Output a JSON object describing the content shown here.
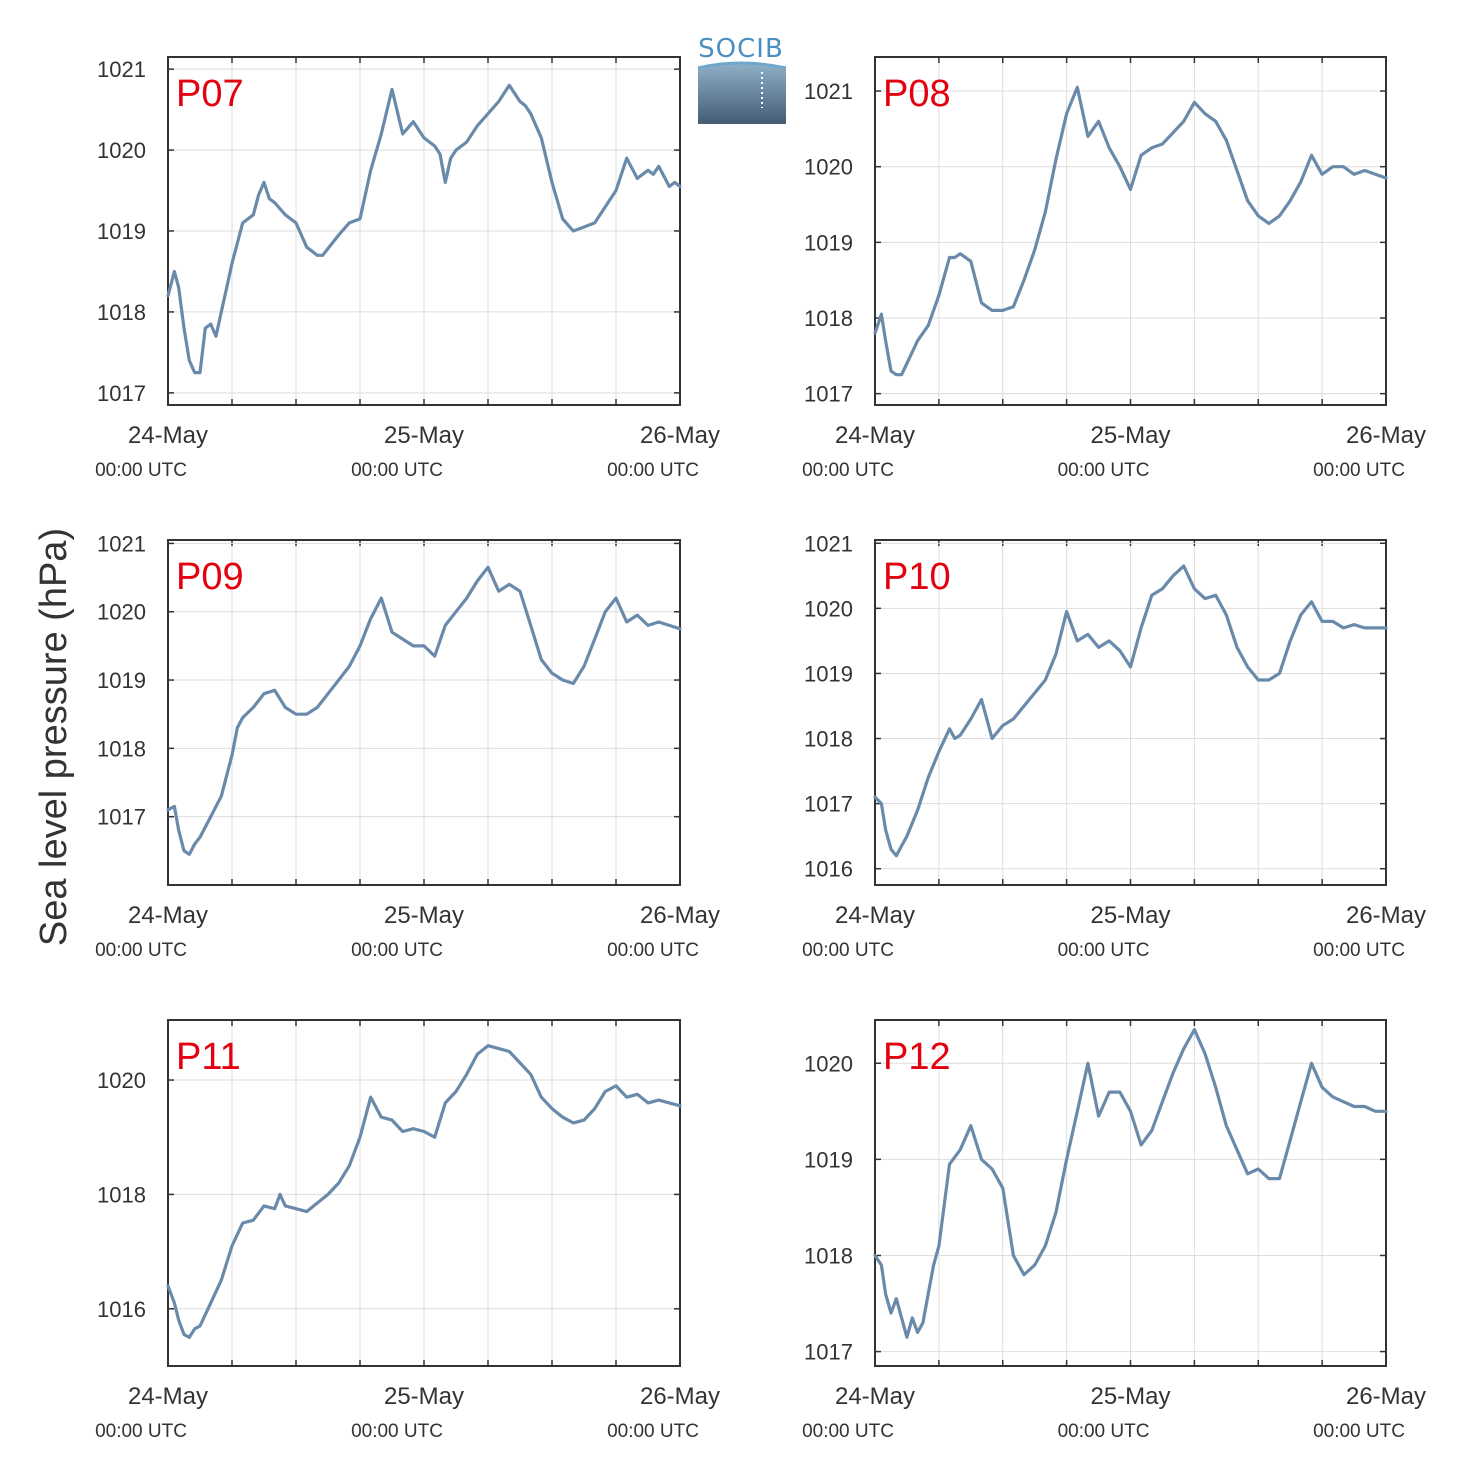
{
  "y_axis_label": "Sea level pressure (hPa)",
  "logo_text": "SOCIB",
  "colors": {
    "line": "#6a8aab",
    "panel_label": "#e3000f",
    "grid": "#dddddd",
    "axis": "#333333"
  },
  "chart_data": [
    {
      "type": "line",
      "label": "P07",
      "x_ticks": [
        "24-May",
        "25-May",
        "26-May"
      ],
      "x_tick_sublabels": [
        "00:00 UTC",
        "00:00 UTC",
        "00:00 UTC"
      ],
      "x_unit": "hours since 24-May 00:00 UTC",
      "xlim": [
        0,
        48
      ],
      "ylim": [
        1016.85,
        1021.15
      ],
      "y_ticks": [
        1017,
        1018,
        1019,
        1020,
        1021
      ],
      "grid": true,
      "series": [
        {
          "x": [
            0,
            0.6,
            1,
            1.5,
            2,
            2.5,
            3,
            3.5,
            4,
            4.5,
            5,
            5.5,
            6,
            7,
            8,
            8.5,
            9,
            9.5,
            10,
            11,
            12,
            13,
            13.5,
            14,
            14.5,
            16,
            17,
            18,
            19,
            20,
            21,
            22,
            23,
            24,
            25,
            25.5,
            26,
            26.5,
            27,
            28,
            29,
            30,
            31,
            32,
            33,
            33.5,
            34,
            35,
            36,
            37,
            38,
            39,
            40,
            41,
            42,
            43,
            44,
            45,
            45.5,
            46,
            47,
            47.5,
            48
          ],
          "y": [
            1018.2,
            1018.5,
            1018.3,
            1017.8,
            1017.4,
            1017.25,
            1017.25,
            1017.8,
            1017.85,
            1017.7,
            1018.0,
            1018.3,
            1018.6,
            1019.1,
            1019.2,
            1019.45,
            1019.6,
            1019.4,
            1019.35,
            1019.2,
            1019.1,
            1018.8,
            1018.75,
            1018.7,
            1018.7,
            1018.95,
            1019.1,
            1019.15,
            1019.75,
            1020.2,
            1020.75,
            1020.2,
            1020.35,
            1020.15,
            1020.05,
            1019.95,
            1019.6,
            1019.9,
            1020.0,
            1020.1,
            1020.3,
            1020.45,
            1020.6,
            1020.8,
            1020.6,
            1020.55,
            1020.45,
            1020.15,
            1019.6,
            1019.15,
            1019.0,
            1019.05,
            1019.1,
            1019.3,
            1019.5,
            1019.9,
            1019.65,
            1019.75,
            1019.7,
            1019.8,
            1019.55,
            1019.6,
            1019.55
          ]
        }
      ]
    },
    {
      "type": "line",
      "label": "P08",
      "x_ticks": [
        "24-May",
        "25-May",
        "26-May"
      ],
      "x_tick_sublabels": [
        "00:00 UTC",
        "00:00 UTC",
        "00:00 UTC"
      ],
      "x_unit": "hours since 24-May 00:00 UTC",
      "xlim": [
        0,
        48
      ],
      "ylim": [
        1016.85,
        1021.45
      ],
      "y_ticks": [
        1017,
        1018,
        1019,
        1020,
        1021
      ],
      "grid": true,
      "series": [
        {
          "x": [
            0,
            0.6,
            1,
            1.5,
            2,
            2.5,
            3,
            4,
            5,
            6,
            7,
            7.5,
            8,
            9,
            10,
            11,
            12,
            13,
            14,
            15,
            16,
            17,
            18,
            19,
            20,
            21,
            22,
            23,
            24,
            25,
            26,
            27,
            28,
            29,
            30,
            31,
            32,
            33,
            34,
            35,
            36,
            37,
            38,
            39,
            40,
            41,
            42,
            43,
            44,
            45,
            46,
            47,
            48
          ],
          "y": [
            1017.8,
            1018.05,
            1017.7,
            1017.3,
            1017.25,
            1017.25,
            1017.4,
            1017.7,
            1017.9,
            1018.3,
            1018.8,
            1018.8,
            1018.85,
            1018.75,
            1018.2,
            1018.1,
            1018.1,
            1018.15,
            1018.5,
            1018.9,
            1019.4,
            1020.1,
            1020.7,
            1021.05,
            1020.4,
            1020.6,
            1020.25,
            1020.0,
            1019.7,
            1020.15,
            1020.25,
            1020.3,
            1020.45,
            1020.6,
            1020.85,
            1020.7,
            1020.6,
            1020.35,
            1019.95,
            1019.55,
            1019.35,
            1019.25,
            1019.35,
            1019.55,
            1019.8,
            1020.15,
            1019.9,
            1020.0,
            1020.0,
            1019.9,
            1019.95,
            1019.9,
            1019.85
          ]
        }
      ]
    },
    {
      "type": "line",
      "label": "P09",
      "x_ticks": [
        "24-May",
        "25-May",
        "26-May"
      ],
      "x_tick_sublabels": [
        "00:00 UTC",
        "00:00 UTC",
        "00:00 UTC"
      ],
      "x_unit": "hours since 24-May 00:00 UTC",
      "xlim": [
        0,
        48
      ],
      "ylim": [
        1016.0,
        1021.05
      ],
      "y_ticks": [
        1017,
        1018,
        1019,
        1020,
        1021
      ],
      "grid": true,
      "series": [
        {
          "x": [
            0,
            0.6,
            1,
            1.5,
            2,
            2.5,
            3,
            4,
            5,
            6,
            6.5,
            7,
            8,
            9,
            10,
            11,
            12,
            13,
            14,
            15,
            16,
            17,
            18,
            19,
            20,
            21,
            22,
            23,
            24,
            25,
            26,
            27,
            28,
            29,
            30,
            31,
            32,
            33,
            34,
            35,
            36,
            37,
            38,
            39,
            40,
            41,
            42,
            43,
            44,
            45,
            46,
            47,
            48
          ],
          "y": [
            1017.1,
            1017.15,
            1016.8,
            1016.5,
            1016.45,
            1016.6,
            1016.7,
            1017.0,
            1017.3,
            1017.9,
            1018.3,
            1018.45,
            1018.6,
            1018.8,
            1018.85,
            1018.6,
            1018.5,
            1018.5,
            1018.6,
            1018.8,
            1019.0,
            1019.2,
            1019.5,
            1019.9,
            1020.2,
            1019.7,
            1019.6,
            1019.5,
            1019.5,
            1019.35,
            1019.8,
            1020.0,
            1020.2,
            1020.45,
            1020.65,
            1020.3,
            1020.4,
            1020.3,
            1019.8,
            1019.3,
            1019.1,
            1019.0,
            1018.95,
            1019.2,
            1019.6,
            1020.0,
            1020.2,
            1019.85,
            1019.95,
            1019.8,
            1019.85,
            1019.8,
            1019.75
          ]
        }
      ]
    },
    {
      "type": "line",
      "label": "P10",
      "x_ticks": [
        "24-May",
        "25-May",
        "26-May"
      ],
      "x_tick_sublabels": [
        "00:00 UTC",
        "00:00 UTC",
        "00:00 UTC"
      ],
      "x_unit": "hours since 24-May 00:00 UTC",
      "xlim": [
        0,
        48
      ],
      "ylim": [
        1015.75,
        1021.05
      ],
      "y_ticks": [
        1016,
        1017,
        1018,
        1019,
        1020,
        1021
      ],
      "grid": true,
      "series": [
        {
          "x": [
            0,
            0.6,
            1,
            1.5,
            2,
            2.5,
            3,
            4,
            5,
            6,
            7,
            7.5,
            8,
            9,
            10,
            11,
            12,
            13,
            14,
            15,
            16,
            17,
            18,
            19,
            20,
            21,
            22,
            23,
            24,
            25,
            26,
            27,
            28,
            29,
            30,
            31,
            32,
            33,
            34,
            35,
            36,
            37,
            38,
            39,
            40,
            41,
            42,
            43,
            44,
            45,
            46,
            47,
            48
          ],
          "y": [
            1017.1,
            1017.0,
            1016.6,
            1016.3,
            1016.2,
            1016.35,
            1016.5,
            1016.9,
            1017.4,
            1017.8,
            1018.15,
            1018.0,
            1018.05,
            1018.3,
            1018.6,
            1018.0,
            1018.2,
            1018.3,
            1018.5,
            1018.7,
            1018.9,
            1019.3,
            1019.95,
            1019.5,
            1019.6,
            1019.4,
            1019.5,
            1019.35,
            1019.1,
            1019.7,
            1020.2,
            1020.3,
            1020.5,
            1020.65,
            1020.3,
            1020.15,
            1020.2,
            1019.9,
            1019.4,
            1019.1,
            1018.9,
            1018.9,
            1019.0,
            1019.5,
            1019.9,
            1020.1,
            1019.8,
            1019.8,
            1019.7,
            1019.75,
            1019.7,
            1019.7,
            1019.7
          ]
        }
      ]
    },
    {
      "type": "line",
      "label": "P11",
      "x_ticks": [
        "24-May",
        "25-May",
        "26-May"
      ],
      "x_tick_sublabels": [
        "00:00 UTC",
        "00:00 UTC",
        "00:00 UTC"
      ],
      "x_unit": "hours since 24-May 00:00 UTC",
      "xlim": [
        0,
        48
      ],
      "ylim": [
        1015.0,
        1021.05
      ],
      "y_ticks": [
        1016,
        1018,
        1020
      ],
      "grid": true,
      "series": [
        {
          "x": [
            0,
            0.6,
            1,
            1.5,
            2,
            2.5,
            3,
            4,
            5,
            6,
            7,
            8,
            9,
            10,
            10.5,
            11,
            12,
            13,
            14,
            15,
            16,
            17,
            18,
            19,
            20,
            21,
            22,
            23,
            24,
            25,
            26,
            27,
            28,
            29,
            30,
            31,
            32,
            33,
            34,
            35,
            36,
            37,
            38,
            39,
            40,
            41,
            42,
            43,
            44,
            45,
            46,
            47,
            48
          ],
          "y": [
            1016.4,
            1016.1,
            1015.8,
            1015.55,
            1015.5,
            1015.65,
            1015.7,
            1016.1,
            1016.5,
            1017.1,
            1017.5,
            1017.55,
            1017.8,
            1017.75,
            1018.0,
            1017.8,
            1017.75,
            1017.7,
            1017.85,
            1018.0,
            1018.2,
            1018.5,
            1019.0,
            1019.7,
            1019.35,
            1019.3,
            1019.1,
            1019.15,
            1019.1,
            1019.0,
            1019.6,
            1019.8,
            1020.1,
            1020.45,
            1020.6,
            1020.55,
            1020.5,
            1020.3,
            1020.1,
            1019.7,
            1019.5,
            1019.35,
            1019.25,
            1019.3,
            1019.5,
            1019.8,
            1019.9,
            1019.7,
            1019.75,
            1019.6,
            1019.65,
            1019.6,
            1019.55
          ]
        }
      ]
    },
    {
      "type": "line",
      "label": "P12",
      "x_ticks": [
        "24-May",
        "25-May",
        "26-May"
      ],
      "x_tick_sublabels": [
        "00:00 UTC",
        "00:00 UTC",
        "00:00 UTC"
      ],
      "x_unit": "hours since 24-May 00:00 UTC",
      "xlim": [
        0,
        48
      ],
      "ylim": [
        1016.85,
        1020.45
      ],
      "y_ticks": [
        1017,
        1018,
        1019,
        1020
      ],
      "grid": true,
      "series": [
        {
          "x": [
            0,
            0.6,
            1,
            1.5,
            2,
            2.5,
            3,
            3.5,
            4,
            4.5,
            5,
            5.5,
            6,
            7,
            8,
            9,
            10,
            11,
            12,
            13,
            14,
            15,
            16,
            17,
            18,
            19,
            20,
            21,
            22,
            23,
            24,
            25,
            26,
            27,
            28,
            29,
            30,
            31,
            32,
            33,
            34,
            35,
            36,
            37,
            38,
            39,
            40,
            41,
            42,
            43,
            44,
            45,
            46,
            47,
            48
          ],
          "y": [
            1018.0,
            1017.9,
            1017.6,
            1017.4,
            1017.55,
            1017.35,
            1017.15,
            1017.35,
            1017.2,
            1017.3,
            1017.6,
            1017.9,
            1018.1,
            1018.95,
            1019.1,
            1019.35,
            1019.0,
            1018.9,
            1018.7,
            1018.0,
            1017.8,
            1017.9,
            1018.1,
            1018.45,
            1019.0,
            1019.5,
            1020.0,
            1019.45,
            1019.7,
            1019.7,
            1019.5,
            1019.15,
            1019.3,
            1019.6,
            1019.9,
            1020.15,
            1020.35,
            1020.1,
            1019.75,
            1019.35,
            1019.1,
            1018.85,
            1018.9,
            1018.8,
            1018.8,
            1019.2,
            1019.6,
            1020.0,
            1019.75,
            1019.65,
            1019.6,
            1019.55,
            1019.55,
            1019.5,
            1019.5
          ]
        }
      ]
    }
  ]
}
